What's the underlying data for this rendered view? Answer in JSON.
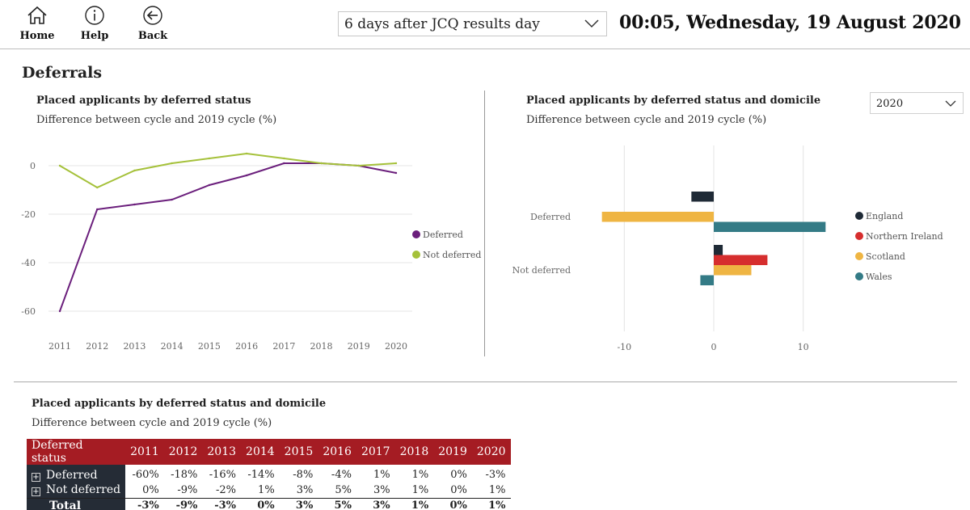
{
  "nav": {
    "home": "Home",
    "help": "Help",
    "back": "Back"
  },
  "period_select": {
    "value": "6 days after JCQ results day"
  },
  "datetime": "00:05, Wednesday, 19 August 2020",
  "section_title": "Deferrals",
  "line_chart": {
    "title": "Placed applicants by deferred status",
    "subtitle": "Difference between cycle and 2019 cycle (%)"
  },
  "bar_chart": {
    "title": "Placed applicants by deferred status and domicile",
    "subtitle": "Difference between cycle and 2019 cycle (%)",
    "year_select": "2020"
  },
  "table": {
    "title": "Placed applicants by deferred status and domicile",
    "subtitle": "Difference between cycle and 2019 cycle (%)",
    "header": [
      "Deferred status",
      "2011",
      "2012",
      "2013",
      "2014",
      "2015",
      "2016",
      "2017",
      "2018",
      "2019",
      "2020"
    ],
    "rows": [
      {
        "label": "Deferred",
        "values": [
          "-60%",
          "-18%",
          "-16%",
          "-14%",
          "-8%",
          "-4%",
          "1%",
          "1%",
          "0%",
          "-3%"
        ]
      },
      {
        "label": "Not deferred",
        "values": [
          "0%",
          "-9%",
          "-2%",
          "1%",
          "3%",
          "5%",
          "3%",
          "1%",
          "0%",
          "1%"
        ]
      }
    ],
    "total": {
      "label": "Total",
      "values": [
        "-3%",
        "-9%",
        "-3%",
        "0%",
        "3%",
        "5%",
        "3%",
        "1%",
        "0%",
        "1%"
      ]
    }
  },
  "colors": {
    "deferred": "#6b1f7c",
    "not_deferred": "#a5c13a",
    "england": "#1f2a36",
    "northern_ireland": "#d62e2e",
    "scotland": "#efb543",
    "wales": "#347b86",
    "header_red": "#a51c23",
    "rowhead_navy": "#252c36"
  },
  "chart_data": [
    {
      "type": "line",
      "x": [
        "2011",
        "2012",
        "2013",
        "2014",
        "2015",
        "2016",
        "2017",
        "2018",
        "2019",
        "2020"
      ],
      "series": [
        {
          "name": "Deferred",
          "values": [
            -60,
            -18,
            -16,
            -14,
            -8,
            -4,
            1,
            1,
            0,
            -3
          ]
        },
        {
          "name": "Not deferred",
          "values": [
            0,
            -9,
            -2,
            1,
            3,
            5,
            3,
            1,
            0,
            1
          ]
        }
      ],
      "ylim": [
        -60,
        0
      ],
      "yticks": [
        0,
        -20,
        -40,
        -60
      ],
      "legend": "right",
      "grid": true
    },
    {
      "type": "bar",
      "orientation": "horizontal",
      "categories": [
        "Deferred",
        "Not deferred"
      ],
      "series": [
        {
          "name": "England",
          "values": [
            -2.5,
            1
          ]
        },
        {
          "name": "Northern Ireland",
          "values": [
            0,
            6
          ]
        },
        {
          "name": "Scotland",
          "values": [
            -12.5,
            4.2
          ]
        },
        {
          "name": "Wales",
          "values": [
            12.5,
            -1.5
          ]
        }
      ],
      "xlim": [
        -15,
        15
      ],
      "xticks": [
        -10,
        0,
        10
      ],
      "legend": "right",
      "grid": true
    }
  ]
}
